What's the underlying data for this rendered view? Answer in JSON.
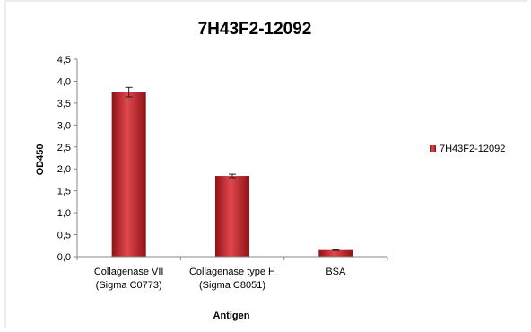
{
  "chart_data": {
    "type": "bar",
    "title": "7H43F2-12092",
    "xlabel": "Antigen",
    "ylabel": "OD450",
    "categories": [
      [
        "Collagenase VII",
        "(Sigma C0773)"
      ],
      [
        "Collagenase type H",
        "(Sigma C8051)"
      ],
      [
        "BSA"
      ]
    ],
    "series": [
      {
        "name": "7H43F2-12092",
        "values": [
          3.75,
          1.84,
          0.15
        ],
        "errors": [
          0.11,
          0.04,
          0.01
        ],
        "color": "#c0272d"
      }
    ],
    "ylim": [
      0,
      4.5
    ],
    "yticks": [
      "0,0",
      "0,5",
      "1,0",
      "1,5",
      "2,0",
      "2,5",
      "3,0",
      "3,5",
      "4,0",
      "4,5"
    ],
    "grid": false,
    "legend": "right"
  }
}
